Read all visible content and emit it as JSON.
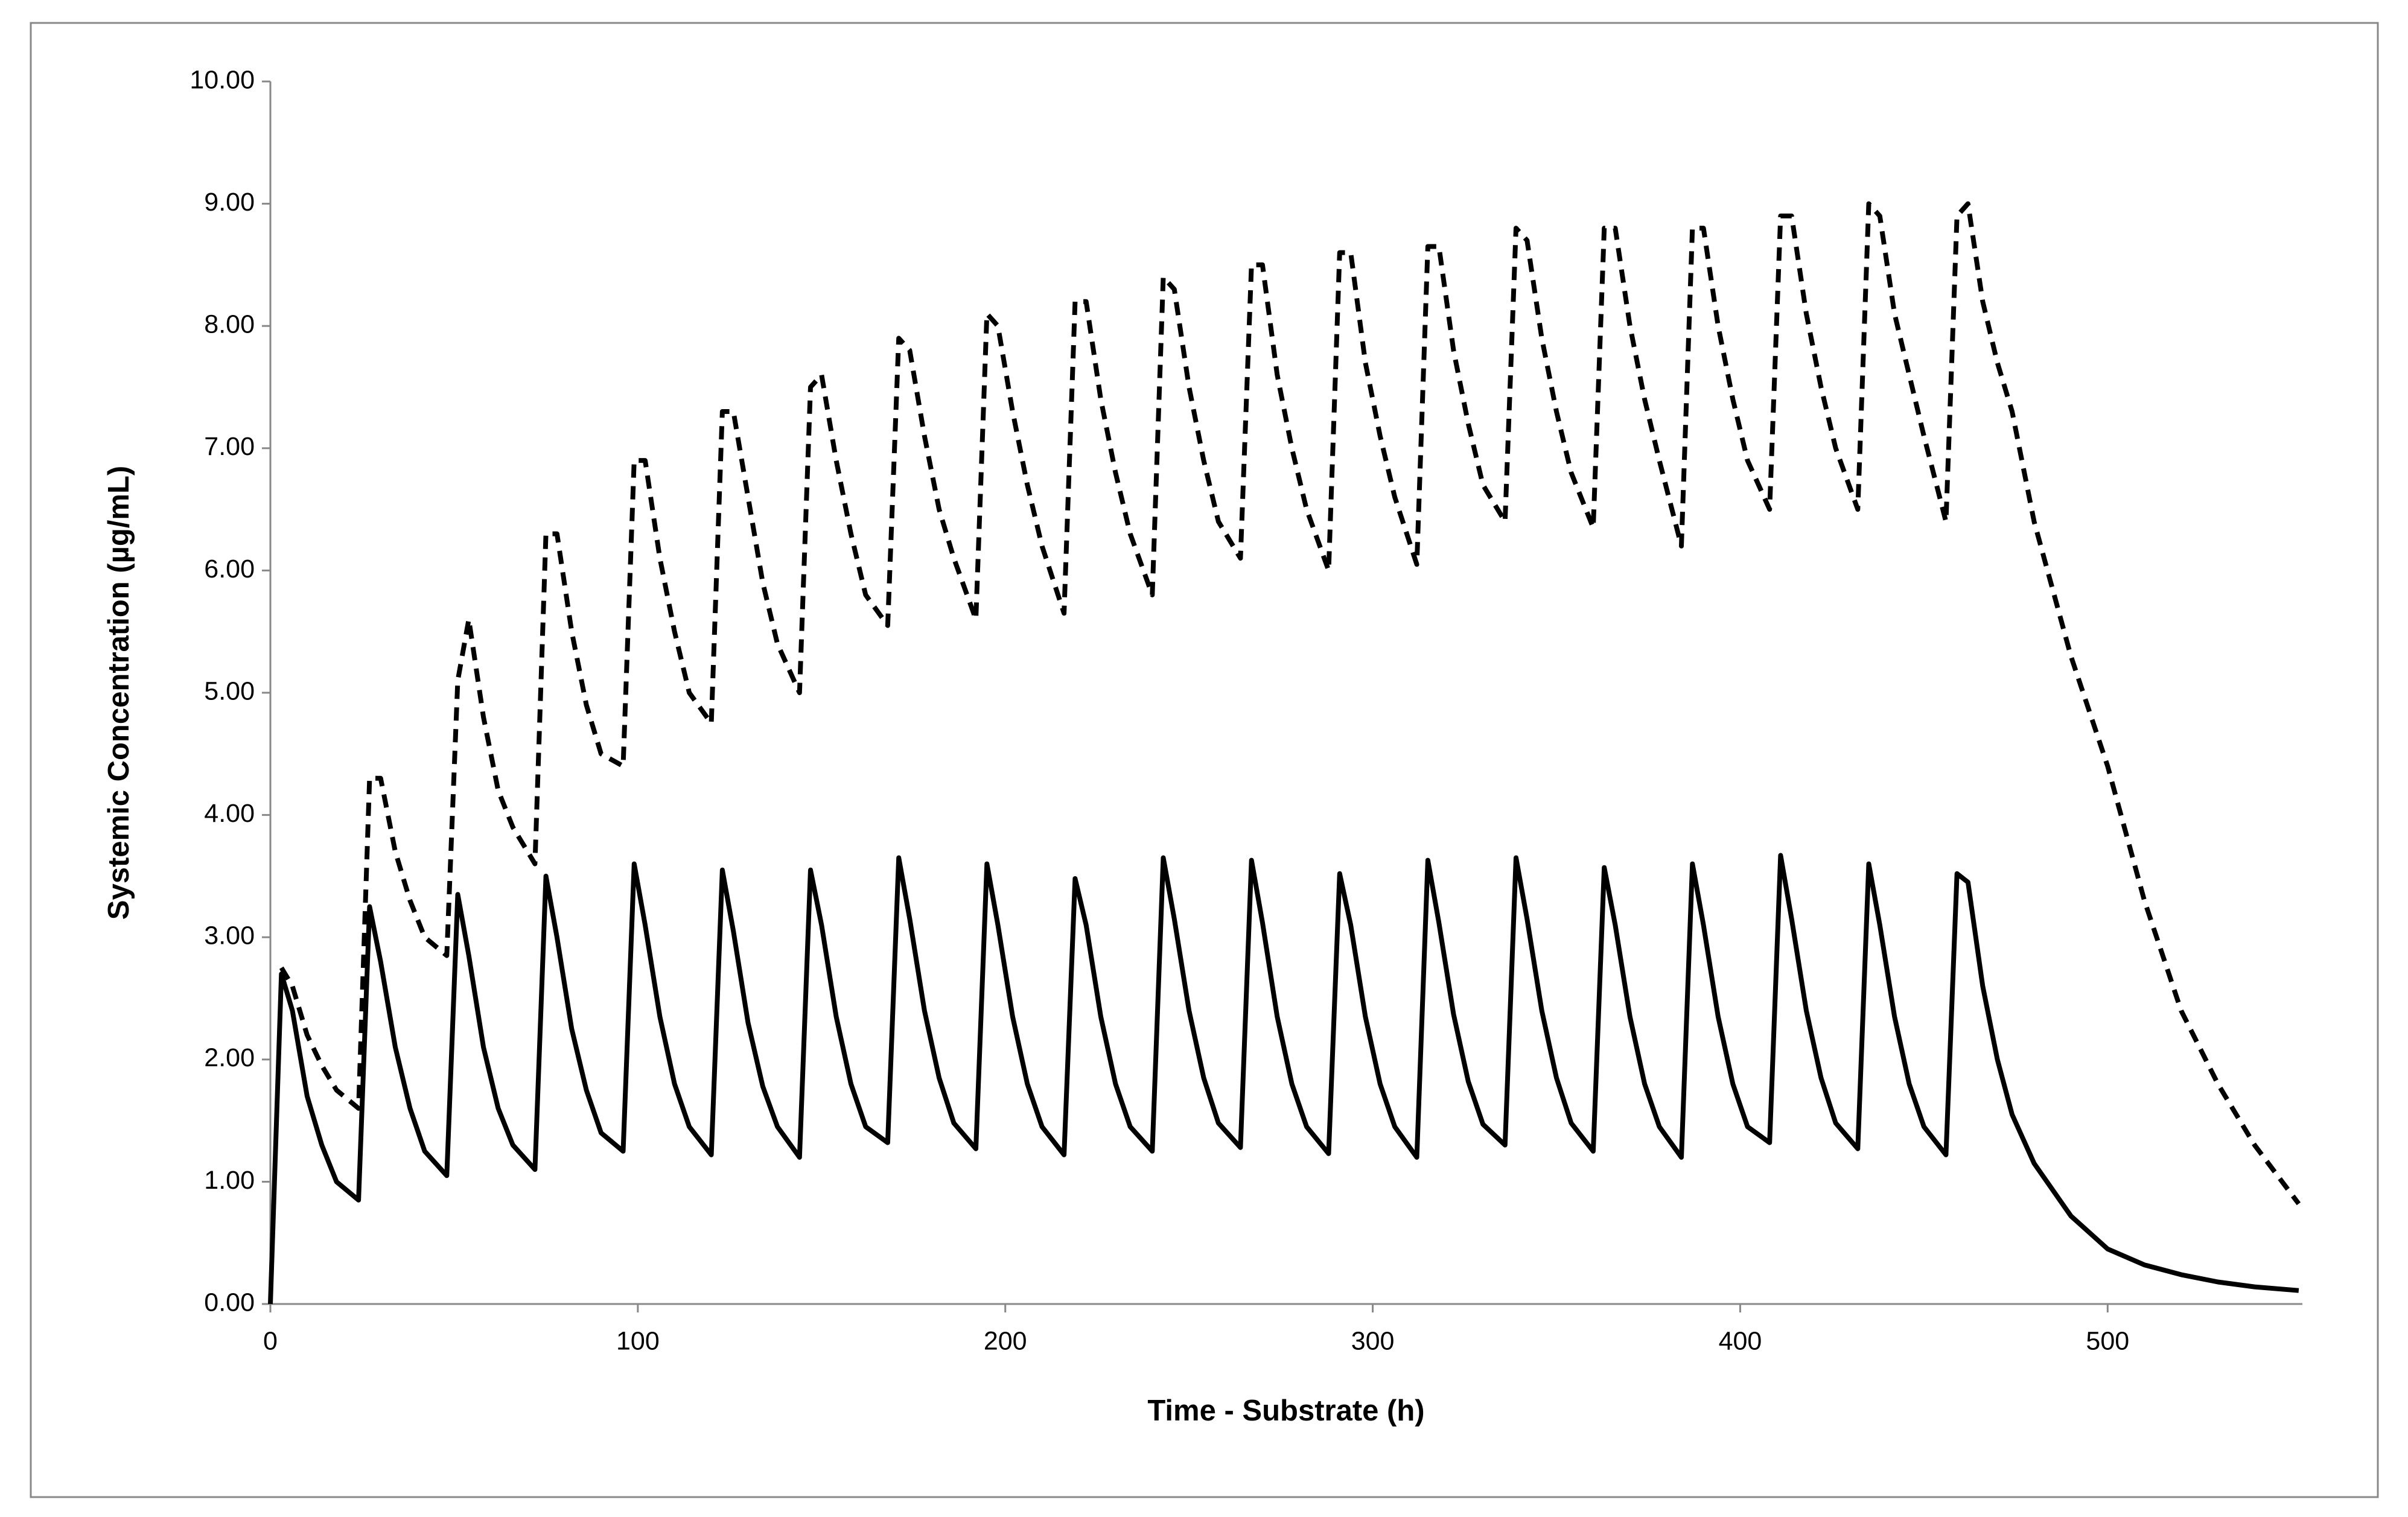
{
  "chart_data": {
    "type": "line",
    "x_label": "Time - Substrate (h)",
    "y_label": "Systemic Concentration (µg/mL)",
    "x": [
      0,
      3,
      6,
      10,
      14,
      18,
      24,
      27,
      30,
      34,
      38,
      42,
      48,
      51,
      54,
      58,
      62,
      66,
      72,
      75,
      78,
      82,
      86,
      90,
      96,
      99,
      102,
      106,
      110,
      114,
      120,
      123,
      126,
      130,
      134,
      138,
      144,
      147,
      150,
      154,
      158,
      162,
      168,
      171,
      174,
      178,
      182,
      186,
      192,
      195,
      198,
      202,
      206,
      210,
      216,
      219,
      222,
      226,
      230,
      234,
      240,
      243,
      246,
      250,
      254,
      258,
      264,
      267,
      270,
      274,
      278,
      282,
      288,
      291,
      294,
      298,
      302,
      306,
      312,
      315,
      318,
      322,
      326,
      330,
      336,
      339,
      342,
      346,
      350,
      354,
      360,
      363,
      366,
      370,
      374,
      378,
      384,
      387,
      390,
      394,
      398,
      402,
      408,
      411,
      414,
      418,
      422,
      426,
      432,
      435,
      438,
      442,
      446,
      450,
      456,
      459,
      462,
      466,
      470,
      474,
      480,
      490,
      500,
      510,
      520,
      530,
      540,
      552
    ],
    "series": [
      {
        "color": "#000000",
        "dashed": true,
        "values": [
          null,
          2.75,
          2.6,
          2.2,
          1.95,
          1.75,
          1.6,
          4.3,
          4.3,
          3.7,
          3.3,
          3.0,
          2.85,
          5.1,
          5.6,
          4.8,
          4.2,
          3.9,
          3.6,
          6.3,
          6.3,
          5.5,
          4.9,
          4.5,
          4.4,
          6.9,
          6.9,
          6.1,
          5.5,
          5.0,
          4.75,
          7.3,
          7.3,
          6.6,
          5.9,
          5.4,
          5.0,
          7.5,
          7.6,
          6.9,
          6.3,
          5.8,
          5.55,
          7.9,
          7.8,
          7.1,
          6.5,
          6.1,
          5.6,
          8.1,
          8.0,
          7.3,
          6.7,
          6.2,
          5.65,
          8.2,
          8.2,
          7.4,
          6.8,
          6.3,
          5.8,
          8.4,
          8.3,
          7.5,
          6.9,
          6.4,
          6.1,
          8.5,
          8.5,
          7.6,
          7.0,
          6.5,
          6.0,
          8.6,
          8.6,
          7.7,
          7.1,
          6.6,
          6.05,
          8.65,
          8.65,
          7.8,
          7.2,
          6.7,
          6.4,
          8.8,
          8.7,
          7.9,
          7.3,
          6.8,
          6.35,
          8.8,
          8.8,
          8.0,
          7.4,
          6.9,
          6.2,
          8.8,
          8.8,
          8.0,
          7.4,
          6.9,
          6.5,
          8.9,
          8.9,
          8.1,
          7.5,
          7.0,
          6.5,
          9.0,
          8.9,
          8.1,
          7.6,
          7.1,
          6.4,
          8.9,
          9.0,
          8.2,
          7.7,
          7.3,
          6.4,
          5.3,
          4.4,
          3.3,
          2.4,
          1.8,
          1.3,
          0.82
        ]
      },
      {
        "color": "#000000",
        "dashed": false,
        "values": [
          0,
          2.7,
          2.4,
          1.7,
          1.3,
          1.0,
          0.85,
          3.25,
          2.8,
          2.1,
          1.6,
          1.25,
          1.05,
          3.35,
          2.85,
          2.1,
          1.6,
          1.3,
          1.1,
          3.5,
          3.0,
          2.25,
          1.75,
          1.4,
          1.25,
          3.6,
          3.1,
          2.35,
          1.8,
          1.45,
          1.22,
          3.55,
          3.05,
          2.3,
          1.78,
          1.45,
          1.2,
          3.55,
          3.1,
          2.35,
          1.8,
          1.45,
          1.32,
          3.65,
          3.15,
          2.4,
          1.85,
          1.48,
          1.27,
          3.6,
          3.1,
          2.35,
          1.8,
          1.45,
          1.22,
          3.48,
          3.1,
          2.35,
          1.8,
          1.45,
          1.25,
          3.65,
          3.15,
          2.4,
          1.85,
          1.48,
          1.28,
          3.63,
          3.12,
          2.35,
          1.8,
          1.45,
          1.23,
          3.52,
          3.1,
          2.35,
          1.8,
          1.45,
          1.2,
          3.63,
          3.12,
          2.37,
          1.82,
          1.47,
          1.3,
          3.65,
          3.15,
          2.4,
          1.85,
          1.48,
          1.25,
          3.57,
          3.1,
          2.35,
          1.8,
          1.45,
          1.2,
          3.6,
          3.1,
          2.35,
          1.8,
          1.45,
          1.32,
          3.67,
          3.15,
          2.4,
          1.85,
          1.48,
          1.27,
          3.6,
          3.1,
          2.35,
          1.8,
          1.45,
          1.22,
          3.52,
          3.45,
          2.6,
          2.0,
          1.55,
          1.15,
          0.72,
          0.45,
          0.32,
          0.24,
          0.18,
          0.14,
          0.11
        ]
      }
    ],
    "xlim": [
      0,
      553
    ],
    "xticks": [
      0,
      100,
      200,
      300,
      400,
      500
    ],
    "ylim": [
      0,
      10
    ],
    "yticks": [
      {
        "value": 0,
        "label": "0.00"
      },
      {
        "value": 1,
        "label": "1.00"
      },
      {
        "value": 2,
        "label": "2.00"
      },
      {
        "value": 3,
        "label": "3.00"
      },
      {
        "value": 4,
        "label": "4.00"
      },
      {
        "value": 5,
        "label": "5.00"
      },
      {
        "value": 6,
        "label": "6.00"
      },
      {
        "value": 7,
        "label": "7.00"
      },
      {
        "value": 8,
        "label": "8.00"
      },
      {
        "value": 9,
        "label": "9.00"
      },
      {
        "value": 10,
        "label": "10.00"
      }
    ],
    "grid": false
  }
}
